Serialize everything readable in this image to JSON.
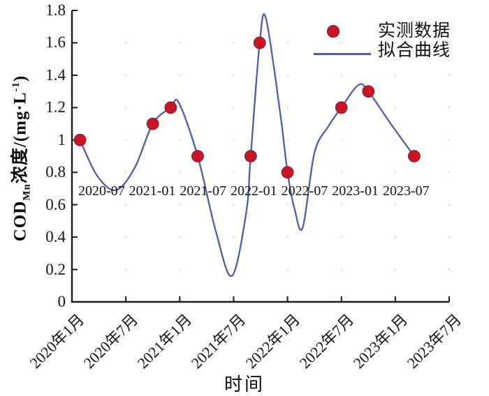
{
  "figure": {
    "xlabel": "时间",
    "ylabel_parts": {
      "p1": "COD",
      "sub": "Mn",
      "p2": "浓度/(mg·L",
      "sup": "-1",
      "p3": ")"
    },
    "inner_axis_labels": "2020-07 2021-01 2021-07 2022-01 2022-07 2023-01 2023-07"
  },
  "legend": {
    "position": "upper right",
    "items": [
      {
        "label": "实测数据",
        "marker": "circle"
      },
      {
        "label": "拟合曲线",
        "marker": "line"
      }
    ]
  },
  "colors": {
    "marker_fill": "#cd1423",
    "marker_edge": "#7a2240",
    "curve": "#525ba8",
    "axis": "#1b1b1b",
    "text": "#111111",
    "grid_dot": "#c9c9cc"
  },
  "chart_data": {
    "type": "scatter",
    "title": "",
    "xlabel": "时间",
    "ylabel": "COD_Mn浓度/(mg·L⁻¹)",
    "grid": "faint dots at tick intersections",
    "legend_position": "upper right",
    "x_axis": {
      "start": "2020-01",
      "tick_months": [
        0,
        6,
        12,
        18,
        24,
        30,
        36,
        42
      ],
      "tick_labels": [
        "2020年1月",
        "2020年7月",
        "2021年1月",
        "2021年7月",
        "2022年1月",
        "2022年7月",
        "2023年1月",
        "2023年7月"
      ],
      "tick_rotation_deg": 45
    },
    "y_axis": {
      "ylim": [
        0,
        1.8
      ],
      "tick_values": [
        0,
        0.2,
        0.4,
        0.6,
        0.8,
        1,
        1.2,
        1.4,
        1.6,
        1.8
      ],
      "tick_labels": [
        "0",
        "0.2",
        "0.4",
        "0.6",
        "0.8",
        "1",
        "1.2",
        "1.4",
        "1.6",
        "1.8"
      ]
    },
    "series": [
      {
        "name": "实测数据",
        "type": "scatter",
        "dates": [
          "2020-02",
          "2020-10",
          "2020-12",
          "2021-03",
          "2021-09",
          "2021-10",
          "2022-01",
          "2022-07",
          "2022-10",
          "2023-03"
        ],
        "months": [
          0.9,
          9,
          11,
          14,
          19.9,
          20.9,
          24,
          30,
          33,
          38.1
        ],
        "values": [
          1.0,
          1.1,
          1.2,
          0.9,
          0.9,
          1.6,
          0.8,
          1.2,
          1.3,
          0.9
        ]
      },
      {
        "name": "拟合曲线",
        "type": "line",
        "samples_months": [
          0.9,
          2.8,
          4.9,
          7.0,
          9.0,
          11.0,
          11.9,
          14.0,
          16.0,
          17.8,
          19.4,
          19.9,
          20.9,
          21.6,
          23.2,
          24.0,
          24.8,
          25.7,
          27.0,
          28.5,
          30.0,
          31.9,
          33.0,
          35.5,
          38.1
        ],
        "samples_values": [
          1.0,
          0.78,
          0.69,
          0.83,
          1.1,
          1.2,
          1.23,
          0.9,
          0.44,
          0.16,
          0.55,
          0.9,
          1.6,
          1.75,
          1.16,
          0.8,
          0.57,
          0.46,
          0.92,
          1.08,
          1.2,
          1.34,
          1.3,
          1.1,
          0.9
        ]
      }
    ]
  }
}
